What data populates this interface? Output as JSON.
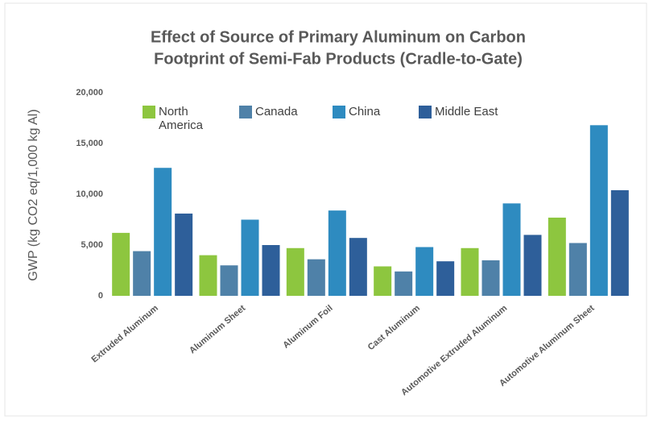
{
  "chart_data": {
    "type": "bar",
    "title": [
      "Effect of Source of Primary Aluminum on Carbon",
      "Footprint of Semi-Fab Products (Cradle-to-Gate)"
    ],
    "y_label": "GWP (kg CO2 eq/1,000 kg Al)",
    "categories": [
      "Extruded Aluminum",
      "Aluminum Sheet",
      "Aluminum Foil",
      "Cast Aluminum",
      "Automotive Extruded Aluminum",
      "Automotive Aluminum Sheet"
    ],
    "series": [
      {
        "name": "North America",
        "color": "#8dc63f",
        "values": [
          6200,
          4000,
          4700,
          2900,
          4700,
          7700
        ]
      },
      {
        "name": "Canada",
        "color": "#4f81a8",
        "values": [
          4400,
          3000,
          3600,
          2400,
          3500,
          5200
        ]
      },
      {
        "name": "China",
        "color": "#2e8bc0",
        "values": [
          12600,
          7500,
          8400,
          4800,
          9100,
          16800
        ]
      },
      {
        "name": "Middle East",
        "color": "#2e5f9a",
        "values": [
          8100,
          5000,
          5700,
          3400,
          6000,
          10400
        ]
      }
    ],
    "ylim": [
      0,
      20000
    ],
    "yticks": [
      0,
      {
        "value": 5000,
        "label": "5,000"
      },
      {
        "value": 10000,
        "label": "10,000"
      },
      {
        "value": 15000,
        "label": "15,000"
      },
      {
        "value": 20000,
        "label": "20,000"
      }
    ],
    "legend": "top"
  }
}
